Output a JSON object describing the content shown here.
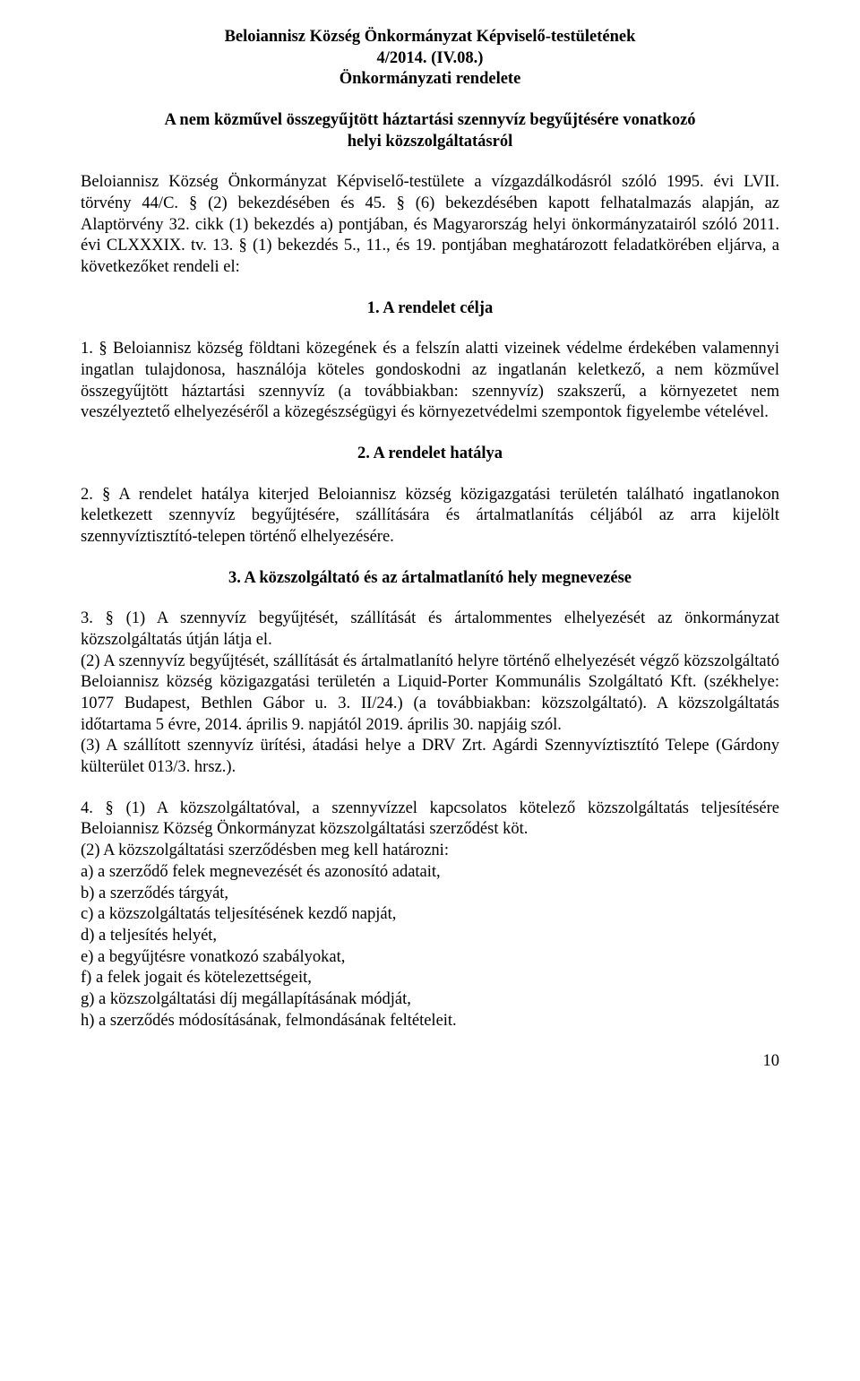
{
  "header": {
    "line1": "Beloiannisz Község Önkormányzat Képviselő-testületének",
    "line2": "4/2014. (IV.08.)",
    "line3": "Önkormányzati rendelete",
    "subtitle_line1": "A nem közművel összegyűjtött háztartási szennyvíz begyűjtésére vonatkozó",
    "subtitle_line2": "helyi közszolgáltatásról"
  },
  "intro": "Beloiannisz Község Önkormányzat Képviselő-testülete a vízgazdálkodásról szóló 1995. évi LVII. törvény 44/C. § (2) bekezdésében és 45. § (6) bekezdésében kapott felhatalmazás alapján, az Alaptörvény 32. cikk (1) bekezdés a) pontjában, és Magyarország helyi önkormányzatairól szóló 2011. évi CLXXXIX. tv. 13. § (1) bekezdés 5., 11., és 19. pontjában meghatározott feladatkörében eljárva, a következőket rendeli el:",
  "sections": {
    "s1": {
      "heading": "1. A rendelet célja",
      "p1": "1. § Beloiannisz község földtani közegének és a felszín alatti vizeinek védelme érdekében valamennyi ingatlan tulajdonosa, használója köteles gondoskodni az ingatlanán keletkező, a nem közművel összegyűjtött háztartási szennyvíz (a továbbiakban: szennyvíz) szakszerű, a környezetet nem veszélyeztető elhelyezéséről a közegészségügyi és környezetvédelmi szempontok figyelembe vételével."
    },
    "s2": {
      "heading": "2. A rendelet hatálya",
      "p1": "2. § A rendelet hatálya kiterjed Beloiannisz község közigazgatási területén található ingatlanokon keletkezett szennyvíz begyűjtésére, szállítására és ártalmatlanítás céljából az arra kijelölt szennyvíztisztító-telepen történő elhelyezésére."
    },
    "s3": {
      "heading": "3. A közszolgáltató és az ártalmatlanító hely megnevezése",
      "p1": "3. § (1) A szennyvíz begyűjtését, szállítását és ártalommentes elhelyezését az  önkormányzat közszolgáltatás útján látja el.",
      "p2": "(2) A szennyvíz begyűjtését, szállítását és ártalmatlanító helyre történő elhelyezését végző közszolgáltató Beloiannisz község közigazgatási területén a Liquid-Porter Kommunális Szolgáltató Kft. (székhelye: 1077 Budapest, Bethlen Gábor u. 3. II/24.) (a továbbiakban: közszolgáltató). A közszolgáltatás időtartama 5 évre, 2014. április 9. napjától 2019. április 30. napjáig szól.",
      "p3": "(3) A szállított szennyvíz ürítési, átadási helye a DRV Zrt. Agárdi Szennyvíztisztító Telepe (Gárdony külterület 013/3. hrsz.).",
      "p4_lead": "4. § (1) A közszolgáltatóval, a szennyvízzel kapcsolatos kötelező közszolgáltatás teljesítésére Beloiannisz Község Önkormányzat közszolgáltatási szerződést köt.",
      "p4_list_heading": "(2) A közszolgáltatási szerződésben meg kell határozni:",
      "list": {
        "a": "a) a szerződő felek megnevezését és azonosító adatait,",
        "b": "b) a szerződés tárgyát,",
        "c": "c) a közszolgáltatás teljesítésének kezdő napját,",
        "d": "d) a teljesítés helyét,",
        "e": "e) a begyűjtésre vonatkozó szabályokat,",
        "f": "f) a felek jogait és kötelezettségeit,",
        "g": "g) a közszolgáltatási díj megállapításának módját,",
        "h": "h) a szerződés módosításának, felmondásának feltételeit."
      }
    }
  },
  "page_number": "10"
}
